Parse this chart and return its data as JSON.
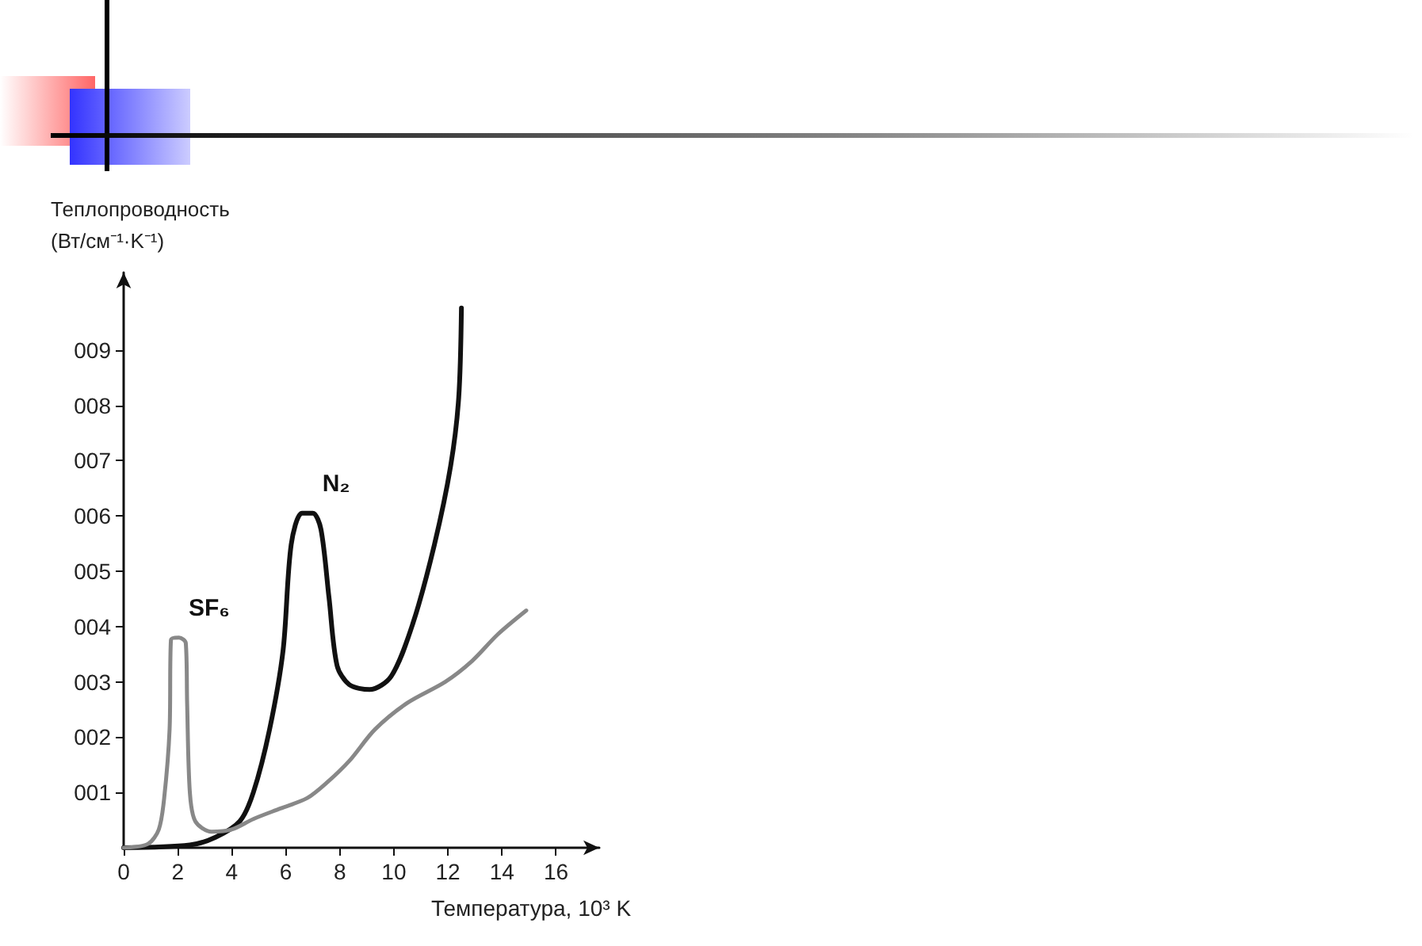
{
  "chart_data": {
    "type": "line",
    "xlabel": "Температура, 10³ K",
    "ylabel": "Теплопроводность\n(Вт/см⁻¹·K⁻¹)",
    "xlim": [
      0,
      17.6
    ],
    "xticks": [
      0,
      2,
      4,
      6,
      8,
      10,
      12,
      14,
      16
    ],
    "ylim": [
      0,
      10.4
    ],
    "yticks": [
      {
        "value": 1,
        "label": "001"
      },
      {
        "value": 2,
        "label": "002"
      },
      {
        "value": 3,
        "label": "003"
      },
      {
        "value": 4,
        "label": "004"
      },
      {
        "value": 5,
        "label": "005"
      },
      {
        "value": 6,
        "label": "006"
      },
      {
        "value": 7,
        "label": "007"
      },
      {
        "value": 8,
        "label": "008"
      },
      {
        "value": 9,
        "label": "009"
      }
    ],
    "grid": false,
    "legend": false,
    "marker": "none",
    "line_style": "solid",
    "series": [
      {
        "name": "N₂",
        "color": "#111111",
        "x": [
          0,
          2.45,
          3.4,
          4.3,
          4.8,
          5.4,
          5.9,
          6.2,
          6.6,
          7.0,
          7.3,
          7.6,
          7.9,
          8.35,
          9.1,
          9.9,
          10.7,
          11.5,
          12.1,
          12.4,
          12.5
        ],
        "values": [
          0,
          0.05,
          0.19,
          0.48,
          1.0,
          2.14,
          3.57,
          5.48,
          6.05,
          6.05,
          5.76,
          4.52,
          3.29,
          2.95,
          2.86,
          3.1,
          4.05,
          5.48,
          6.9,
          8.14,
          9.76
        ]
      },
      {
        "name": "SF₆",
        "color": "#888888",
        "x": [
          0,
          0.9,
          1.3,
          1.5,
          1.7,
          1.75,
          2.05,
          2.3,
          2.35,
          2.45,
          2.65,
          3.25,
          4.0,
          4.8,
          5.8,
          6.8,
          7.55,
          8.35,
          9.3,
          10.5,
          11.9,
          12.9,
          13.85,
          14.9
        ],
        "values": [
          0,
          0.07,
          0.33,
          0.9,
          2.14,
          3.76,
          3.8,
          3.7,
          2.6,
          1.0,
          0.48,
          0.29,
          0.33,
          0.52,
          0.71,
          0.9,
          1.19,
          1.57,
          2.14,
          2.62,
          3.0,
          3.38,
          3.86,
          4.29
        ]
      }
    ]
  }
}
